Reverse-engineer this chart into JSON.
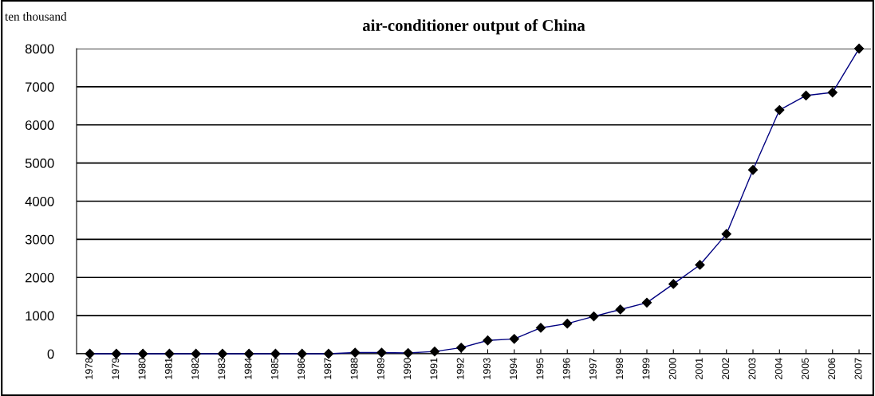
{
  "chart_data": {
    "type": "line",
    "title": "air-conditioner output of China",
    "ylabel": "ten thousand",
    "categories": [
      "1978",
      "1979",
      "1980",
      "1981",
      "1982",
      "1983",
      "1984",
      "1985",
      "1986",
      "1987",
      "1988",
      "1989",
      "1990",
      "1991",
      "1992",
      "1993",
      "1994",
      "1995",
      "1996",
      "1997",
      "1998",
      "1999",
      "2000",
      "2001",
      "2002",
      "2003",
      "2004",
      "2005",
      "2006",
      "2007"
    ],
    "series": [
      {
        "color": "#000080",
        "values": [
          0,
          0,
          0,
          0,
          0,
          0,
          0,
          0,
          0,
          0,
          30,
          30,
          20,
          60,
          160,
          350,
          390,
          680,
          790,
          980,
          1160,
          1340,
          1830,
          2330,
          3140,
          4820,
          6390,
          6770,
          6850,
          8000
        ]
      }
    ],
    "ylim": [
      0,
      8000
    ],
    "yticks": [
      0,
      1000,
      2000,
      3000,
      4000,
      5000,
      6000,
      7000,
      8000
    ],
    "grid": "y",
    "marker": "diamond",
    "line_style": "solid"
  }
}
